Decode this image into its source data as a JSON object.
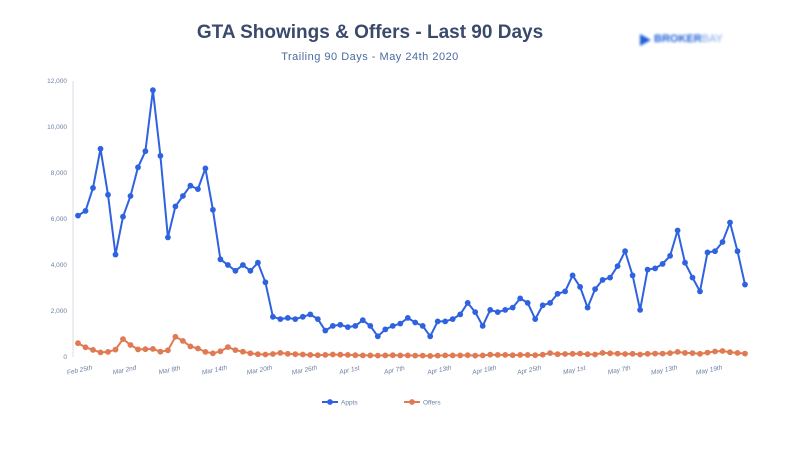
{
  "chart_data": {
    "type": "line",
    "title": "GTA Showings & Offers - Last 90 Days",
    "subtitle": "Trailing 90 Days - May 24th 2020",
    "ylim": [
      0,
      12000
    ],
    "yticks": [
      "0",
      "2,000",
      "4,000",
      "6,000",
      "8,000",
      "10,000",
      "12,000"
    ],
    "ytick_values": [
      0,
      2000,
      4000,
      6000,
      8000,
      10000,
      12000
    ],
    "xtick_labels": [
      "Feb 25th",
      "Mar 2nd",
      "Mar 8th",
      "Mar 14th",
      "Mar 20th",
      "Mar 26th",
      "Apr 1st",
      "Apr 7th",
      "Apr 13th",
      "Apr 19th",
      "Apr 25th",
      "May 1st",
      "May 7th",
      "May 13th",
      "May 19th"
    ],
    "xtick_positions": [
      0,
      6,
      12,
      18,
      24,
      30,
      36,
      42,
      48,
      54,
      60,
      66,
      72,
      78,
      84
    ],
    "grid": false,
    "legend": "bottom",
    "series": [
      {
        "name": "Appts",
        "color": "#2f62e0",
        "values": [
          6150,
          6350,
          7350,
          9050,
          7050,
          4450,
          6100,
          7000,
          8250,
          8950,
          11600,
          8750,
          5200,
          6550,
          7000,
          7450,
          7300,
          8200,
          6400,
          4250,
          4000,
          3750,
          4000,
          3750,
          4100,
          3250,
          1750,
          1650,
          1700,
          1650,
          1750,
          1850,
          1650,
          1150,
          1350,
          1400,
          1300,
          1350,
          1600,
          1350,
          900,
          1200,
          1350,
          1450,
          1700,
          1500,
          1350,
          900,
          1550,
          1550,
          1650,
          1850,
          2350,
          1950,
          1350,
          2050,
          1950,
          2050,
          2150,
          2550,
          2350,
          1650,
          2250,
          2350,
          2750,
          2850,
          3550,
          3050,
          2150,
          2950,
          3350,
          3450,
          3950,
          4600,
          3550,
          2050,
          3800,
          3850,
          4050,
          4400,
          5500,
          4100,
          3450,
          2850,
          4550,
          4600,
          5000,
          5850,
          4600,
          3150
        ]
      },
      {
        "name": "Offers",
        "color": "#e07a52",
        "values": [
          600,
          420,
          310,
          200,
          220,
          320,
          780,
          520,
          330,
          340,
          350,
          230,
          290,
          880,
          700,
          460,
          370,
          220,
          160,
          250,
          430,
          300,
          230,
          160,
          120,
          110,
          130,
          180,
          140,
          120,
          110,
          90,
          80,
          90,
          110,
          100,
          90,
          80,
          70,
          70,
          60,
          70,
          80,
          70,
          70,
          60,
          60,
          50,
          60,
          70,
          70,
          70,
          80,
          60,
          70,
          100,
          90,
          90,
          80,
          90,
          90,
          80,
          100,
          170,
          120,
          130,
          140,
          150,
          120,
          110,
          180,
          160,
          150,
          130,
          140,
          110,
          140,
          150,
          150,
          170,
          220,
          180,
          170,
          140,
          190,
          240,
          260,
          210,
          180,
          150
        ]
      }
    ]
  }
}
